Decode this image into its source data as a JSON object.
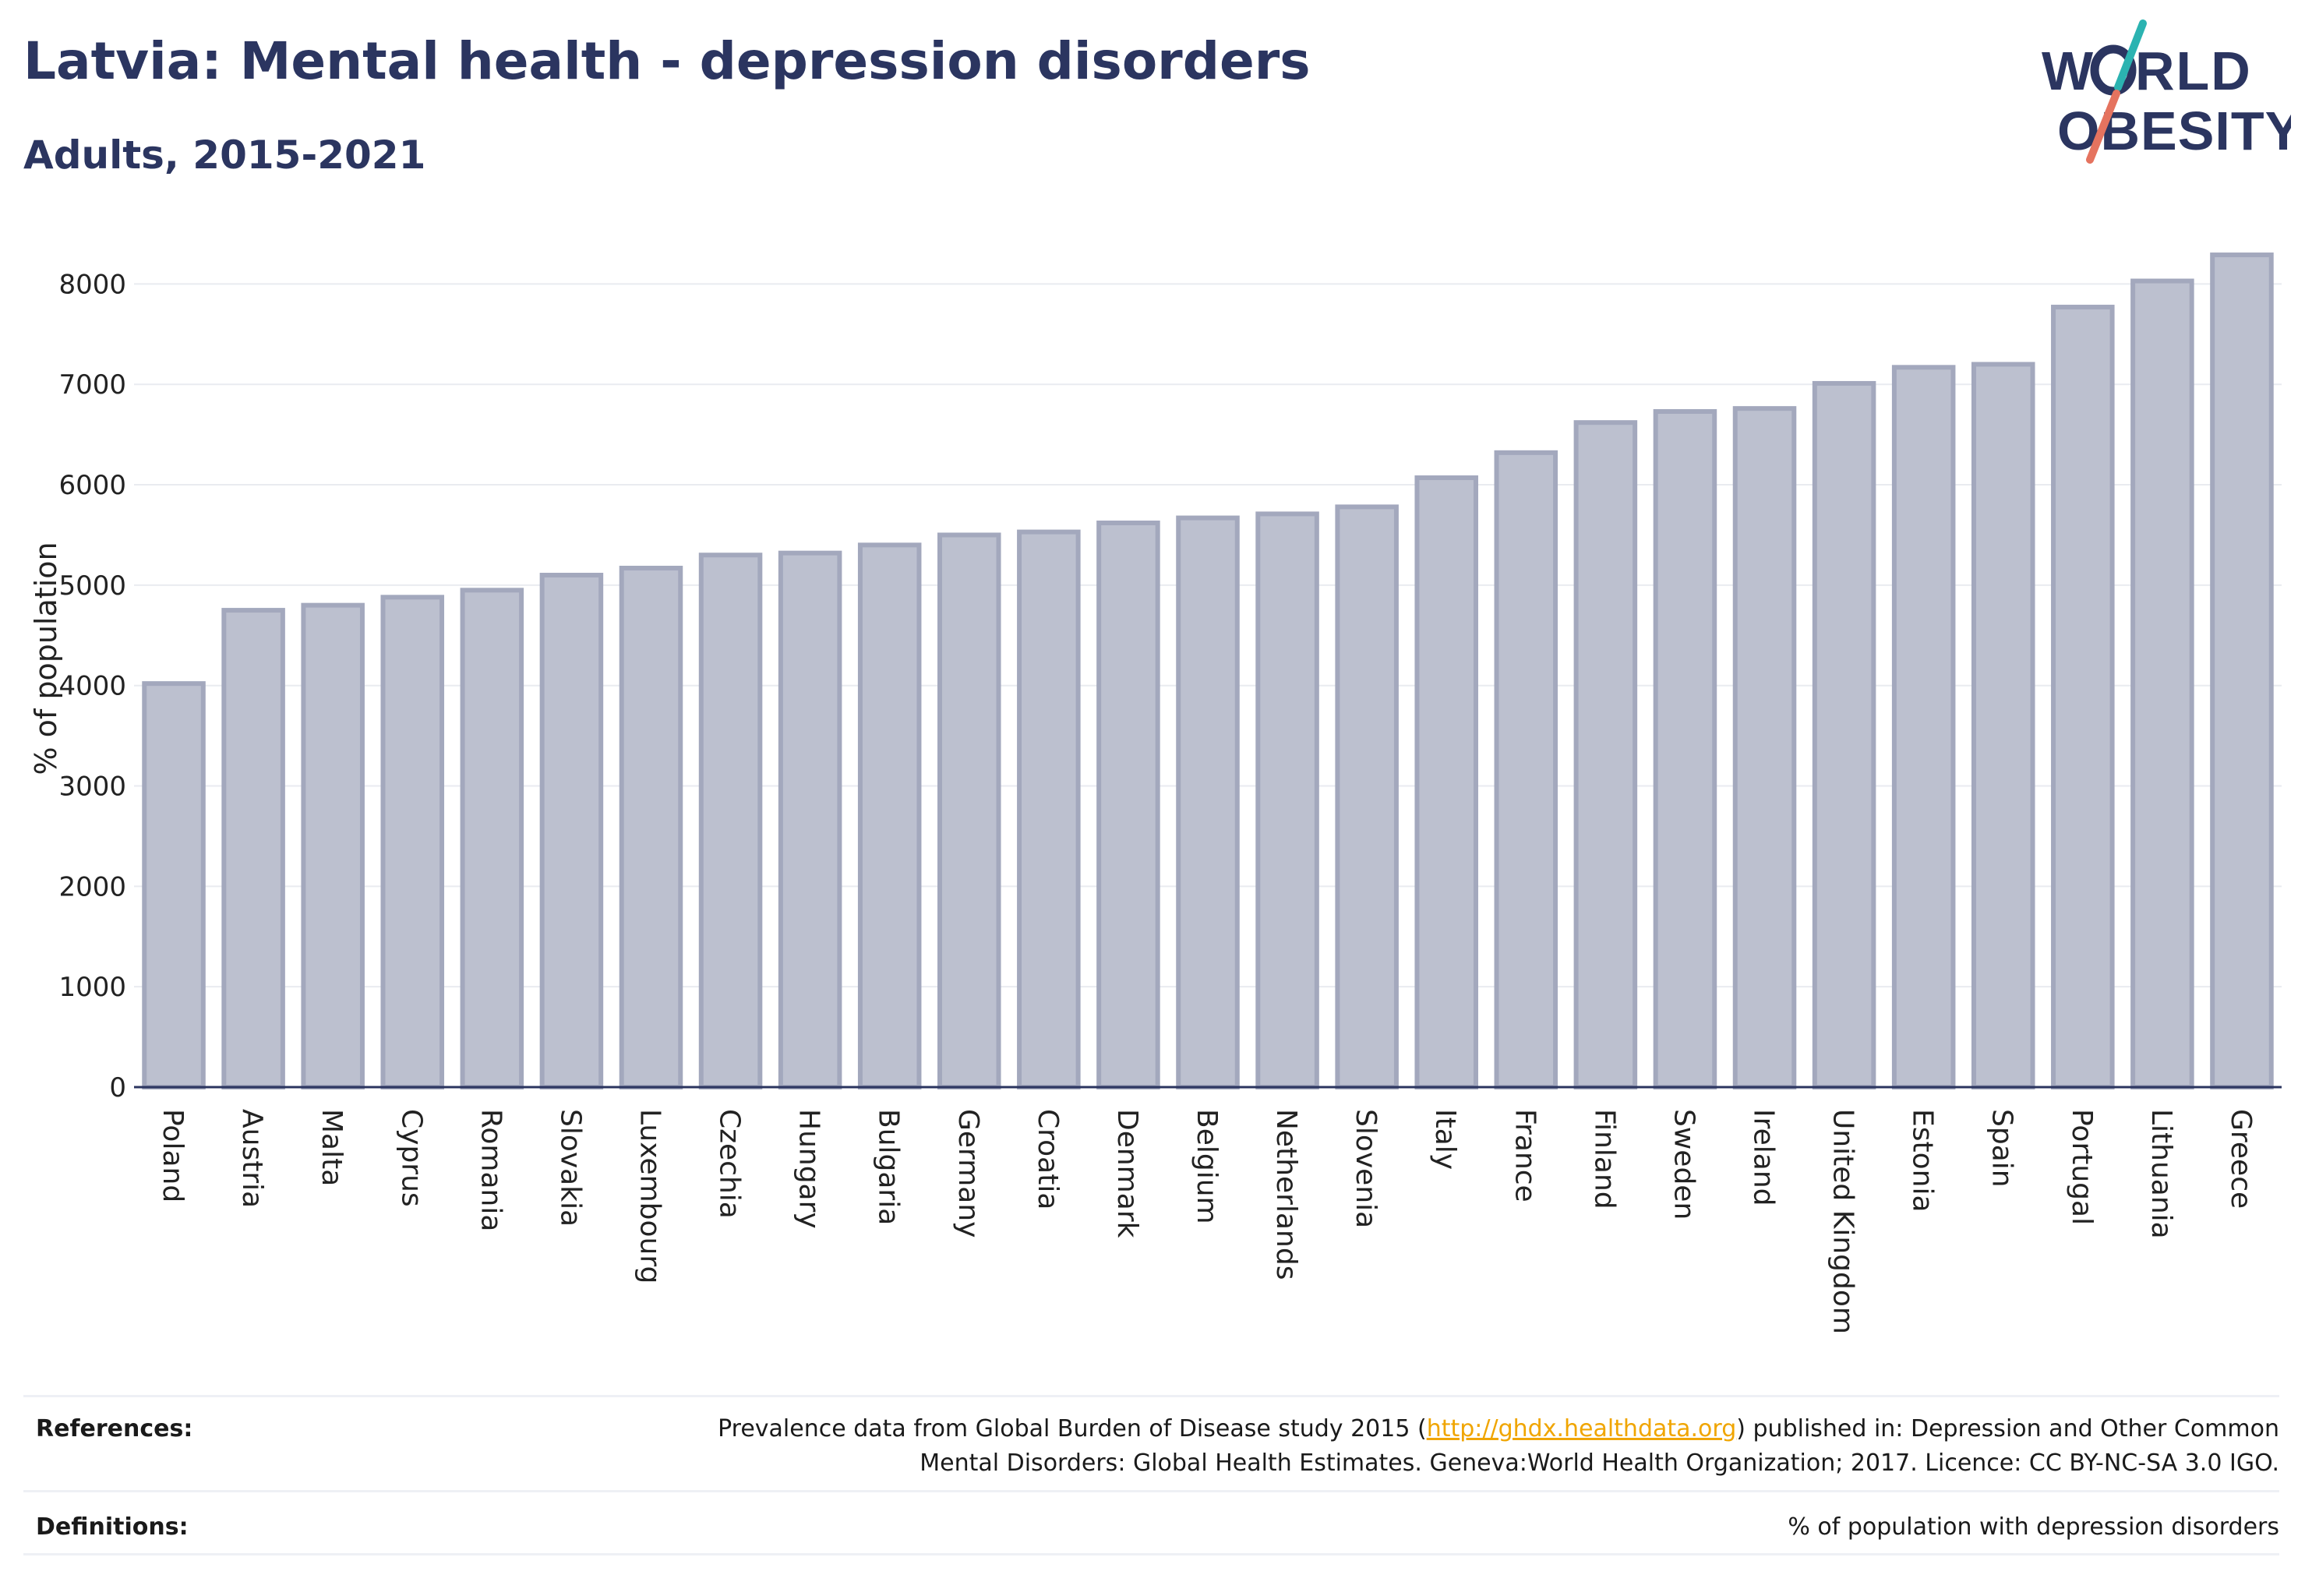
{
  "title": "Latvia: Mental health - depression disorders",
  "subtitle": "Adults, 2015-2021",
  "logo": {
    "line1": "W RLD",
    "line2": "OBESITY",
    "colors": [
      "#2b3560",
      "#2bb3b1",
      "#e5735f"
    ]
  },
  "chart_data": {
    "type": "bar",
    "title": "Latvia: Mental health - depression disorders",
    "subtitle": "Adults, 2015-2021",
    "xlabel": "",
    "ylabel": "% of population",
    "ylim": [
      0,
      8500
    ],
    "yticks": [
      0,
      1000,
      2000,
      3000,
      4000,
      5000,
      6000,
      7000,
      8000
    ],
    "grid": true,
    "bar_color": "#bcc0cf",
    "bar_edge_color": "#a3a8bd",
    "categories": [
      "Poland",
      "Austria",
      "Malta",
      "Cyprus",
      "Romania",
      "Slovakia",
      "Luxembourg",
      "Czechia",
      "Hungary",
      "Bulgaria",
      "Germany",
      "Croatia",
      "Denmark",
      "Belgium",
      "Netherlands",
      "Slovenia",
      "Italy",
      "France",
      "Finland",
      "Sweden",
      "Ireland",
      "United Kingdom",
      "Estonia",
      "Spain",
      "Portugal",
      "Lithuania",
      "Greece"
    ],
    "values": [
      4020,
      4750,
      4800,
      4880,
      4950,
      5100,
      5170,
      5300,
      5320,
      5400,
      5500,
      5530,
      5620,
      5670,
      5710,
      5780,
      6070,
      6320,
      6620,
      6730,
      6760,
      7010,
      7170,
      7200,
      7770,
      8030,
      8290
    ]
  },
  "footer": {
    "references_label": "References:",
    "references_pre": "Prevalence data from Global Burden of Disease study 2015 (",
    "references_link": "http://ghdx.healthdata.org",
    "references_post": ") published in: Depression and Other Common",
    "references_line2": "Mental Disorders: Global Health Estimates. Geneva:World Health Organization; 2017. Licence: CC BY-NC-SA 3.0 IGO.",
    "definitions_label": "Definitions:",
    "definitions_text": "% of population with depression disorders"
  }
}
